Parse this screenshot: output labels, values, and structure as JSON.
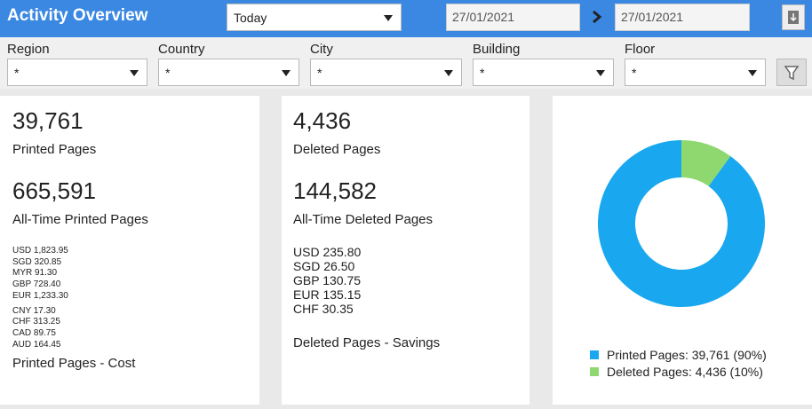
{
  "header": {
    "title": "Activity Overview",
    "period": "Today",
    "date_from": "27/01/2021",
    "date_to": "27/01/2021"
  },
  "filters": [
    {
      "label": "Region",
      "value": "*"
    },
    {
      "label": "Country",
      "value": "*"
    },
    {
      "label": "City",
      "value": "*"
    },
    {
      "label": "Building",
      "value": "*"
    },
    {
      "label": "Floor",
      "value": "*"
    }
  ],
  "printed": {
    "count": "39,761",
    "count_label": "Printed Pages",
    "all_time": "665,591",
    "all_time_label": "All-Time Printed Pages",
    "cost_groups": [
      [
        "USD 1,823.95",
        "SGD 320.85",
        "MYR 91.30",
        "GBP 728.40",
        "EUR 1,233.30"
      ],
      [
        "CNY 17.30",
        "CHF 313.25",
        "CAD 89.75",
        "AUD 164.45"
      ]
    ],
    "cost_label": "Printed Pages - Cost"
  },
  "deleted": {
    "count": "4,436",
    "count_label": "Deleted Pages",
    "all_time": "144,582",
    "all_time_label": "All-Time Deleted Pages",
    "savings": [
      "USD 235.80",
      "SGD 26.50",
      "GBP 130.75",
      "EUR 135.15",
      "CHF 30.35"
    ],
    "savings_label": "Deleted Pages - Savings"
  },
  "chart_data": {
    "type": "pie",
    "categories": [
      "Printed Pages: 39,761 (90%)",
      "Deleted Pages: 4,436 (10%)"
    ],
    "values": [
      90,
      10
    ],
    "colors": [
      "#19a8ef",
      "#8ed86f"
    ],
    "donut": true
  }
}
